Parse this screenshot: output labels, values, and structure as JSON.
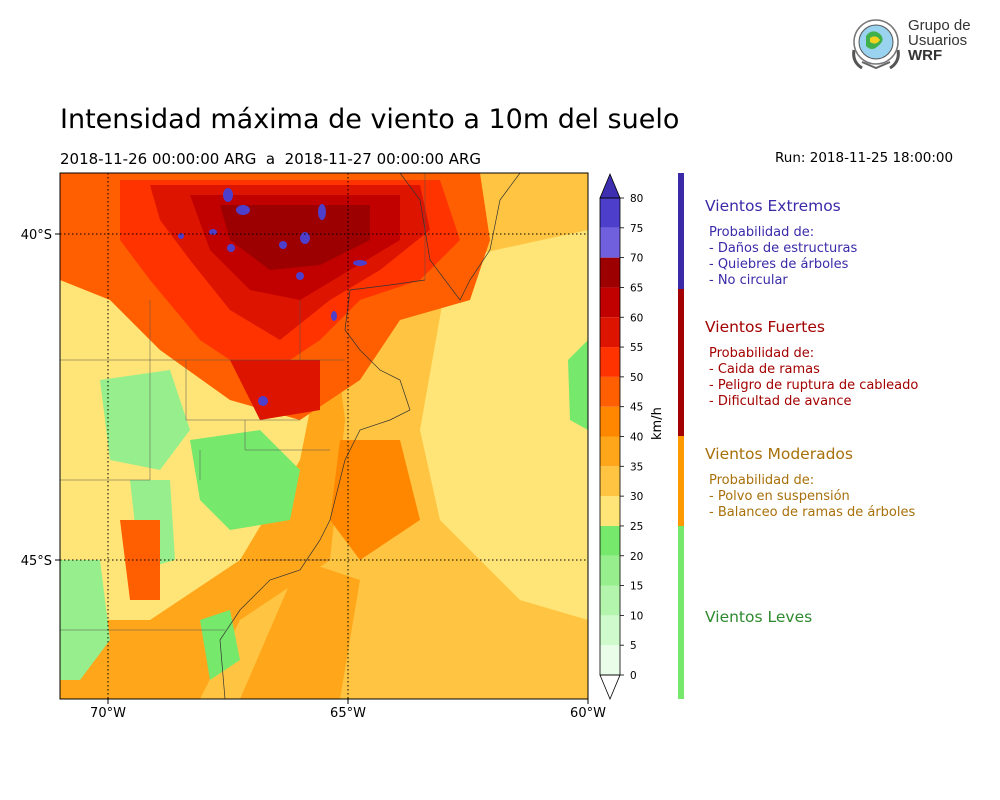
{
  "header": {
    "title": "Intensidad máxima de viento a 10m del suelo",
    "period": "2018-11-26 00:00:00 ARG  a  2018-11-27 00:00:00 ARG",
    "run": "Run: 2018-11-25 18:00:00"
  },
  "logo": {
    "line1": "Grupo de",
    "line2": "Usuarios",
    "line3": "WRF"
  },
  "map": {
    "lat_labels": [
      "40°S",
      "45°S"
    ],
    "lon_labels": [
      "70°W",
      "65°W",
      "60°W"
    ]
  },
  "colorbar": {
    "unit": "km/h",
    "ticks": [
      "0",
      "5",
      "10",
      "15",
      "20",
      "25",
      "30",
      "35",
      "40",
      "45",
      "50",
      "55",
      "60",
      "65",
      "70",
      "75",
      "80"
    ],
    "colors": [
      "#e9fde9",
      "#cffacb",
      "#b3f5ad",
      "#96ef8c",
      "#76e86c",
      "#ffe577",
      "#ffc542",
      "#ffa61a",
      "#ff8700",
      "#ff5f00",
      "#ff3300",
      "#dd1400",
      "#c10000",
      "#9c0000",
      "#7060dd",
      "#4d3fcc",
      "#3d2fb0"
    ],
    "extend_color": "#3d2fb0"
  },
  "legend": {
    "categories": [
      {
        "title": "Vientos Extremos",
        "color": "#3a2aa8",
        "lines": [
          "Probabilidad de:",
          "- Daños de estructuras",
          "- Quiebres de árboles",
          "- No circular"
        ]
      },
      {
        "title": "Vientos Fuertes",
        "color": "#a30000",
        "lines": [
          "Probabilidad de:",
          "- Caida de ramas",
          "- Peligro de ruptura de cableado",
          "- Dificultad de avance"
        ]
      },
      {
        "title": "Vientos Moderados",
        "color": "#a8700a",
        "lines": [
          "Probabilidad de:",
          "- Polvo en suspensión",
          "- Balanceo de ramas de árboles"
        ]
      },
      {
        "title": "Vientos Leves",
        "color": "#2f8a2f",
        "lines": []
      }
    ],
    "bar_colors": [
      "#3a2aa8",
      "#a30000",
      "#ff9900",
      "#76e86c"
    ]
  }
}
